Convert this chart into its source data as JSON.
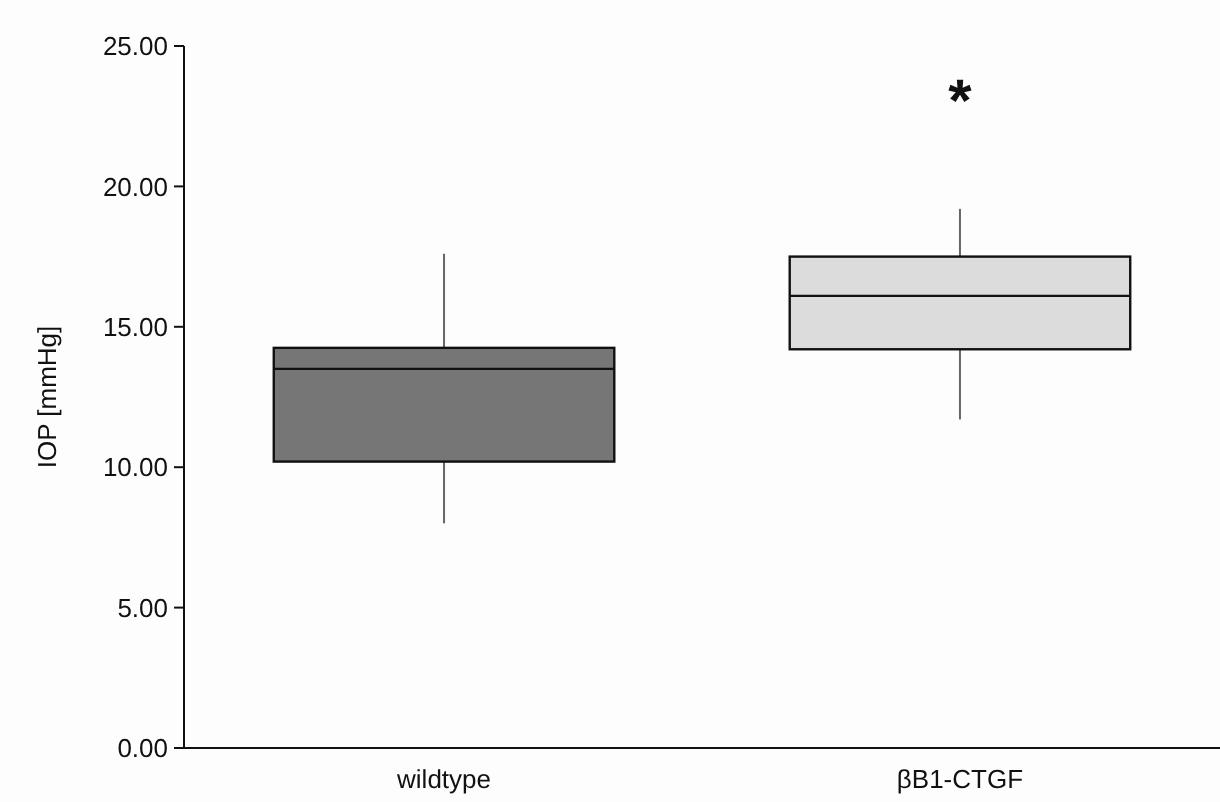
{
  "chart_data": {
    "type": "box",
    "ylabel": "IOP [mmHg]",
    "categories": [
      "wildtype",
      "βB1-CTGF"
    ],
    "boxes": [
      {
        "low": 8.0,
        "q1": 10.2,
        "median": 13.5,
        "q3": 14.25,
        "high": 17.6
      },
      {
        "low": 11.7,
        "q1": 14.2,
        "median": 16.1,
        "q3": 17.5,
        "high": 19.2
      }
    ],
    "colors": [
      "#767676",
      "#dcdcdc"
    ],
    "ylim": [
      0,
      25
    ],
    "yticks": [
      {
        "value": 0,
        "label": "0.00"
      },
      {
        "value": 5,
        "label": "5.00"
      },
      {
        "value": 10,
        "label": "10.00"
      },
      {
        "value": 15,
        "label": "15.00"
      },
      {
        "value": 20,
        "label": "20.00"
      },
      {
        "value": 25,
        "label": "25.00"
      }
    ],
    "annotations": [
      "*"
    ],
    "grid": false
  }
}
